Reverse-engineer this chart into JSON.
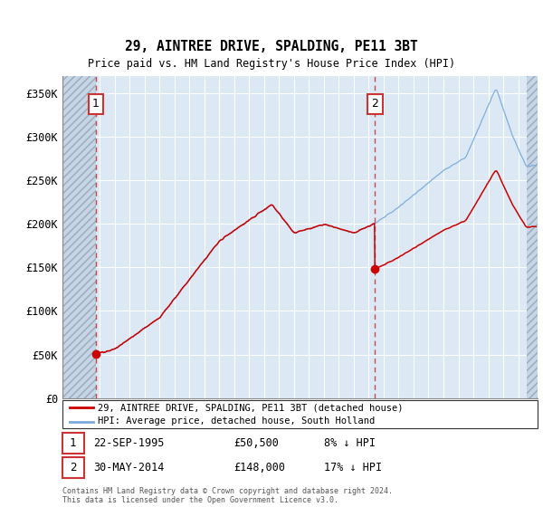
{
  "title": "29, AINTREE DRIVE, SPALDING, PE11 3BT",
  "subtitle": "Price paid vs. HM Land Registry's House Price Index (HPI)",
  "ylim": [
    0,
    370000
  ],
  "yticks": [
    0,
    50000,
    100000,
    150000,
    200000,
    250000,
    300000,
    350000
  ],
  "ytick_labels": [
    "£0",
    "£50K",
    "£100K",
    "£150K",
    "£200K",
    "£250K",
    "£300K",
    "£350K"
  ],
  "xlim_start": 1993.5,
  "xlim_end": 2025.3,
  "transaction1_date": 1995.73,
  "transaction1_price": 50500,
  "transaction2_date": 2014.41,
  "transaction2_price": 148000,
  "hpi_line_color": "#7aabdc",
  "price_line_color": "#cc0000",
  "marker_color": "#cc0000",
  "dashed_line_color": "#cc0000",
  "plot_bg_color": "#dce9f5",
  "hatch_color": "#c0c8d0",
  "grid_color": "#aabfcf",
  "legend_label1": "29, AINTREE DRIVE, SPALDING, PE11 3BT (detached house)",
  "legend_label2": "HPI: Average price, detached house, South Holland",
  "annotation1_label": "1",
  "annotation2_label": "2",
  "annotation1_text": "22-SEP-1995",
  "annotation1_price": "£50,500",
  "annotation1_hpi": "8% ↓ HPI",
  "annotation2_text": "30-MAY-2014",
  "annotation2_price": "£148,000",
  "annotation2_hpi": "17% ↓ HPI",
  "footer": "Contains HM Land Registry data © Crown copyright and database right 2024.\nThis data is licensed under the Open Government Licence v3.0.",
  "hatch_end": 2024.6
}
